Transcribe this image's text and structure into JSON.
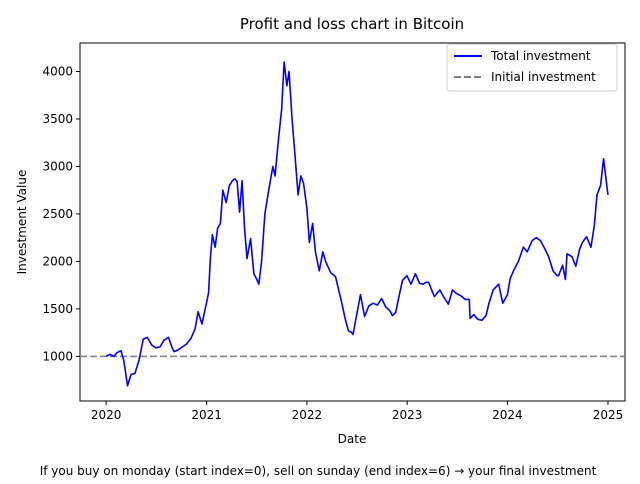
{
  "chart_data": {
    "type": "line",
    "title": "Profit and loss chart in Bitcoin",
    "xlabel": "Date",
    "ylabel": "Investment Value",
    "caption": "If you buy on monday (start index=0), sell on sunday (end index=6) → your final investment",
    "xlim": [
      "2019-09-28",
      "2025-03-04"
    ],
    "ylim": [
      530,
      4300
    ],
    "xticks": [
      {
        "label": "2020",
        "value": "2020-01-01"
      },
      {
        "label": "2021",
        "value": "2021-01-01"
      },
      {
        "label": "2022",
        "value": "2022-01-01"
      },
      {
        "label": "2023",
        "value": "2023-01-01"
      },
      {
        "label": "2024",
        "value": "2024-01-01"
      },
      {
        "label": "2025",
        "value": "2025-01-01"
      }
    ],
    "yticks": [
      1000,
      1500,
      2000,
      2500,
      3000,
      3500,
      4000
    ],
    "grid": false,
    "legend_position": "upper right",
    "series": [
      {
        "name": "Total investment",
        "color": "#0000ff",
        "style": "solid",
        "x": [
          "2020-01-01",
          "2020-01-15",
          "2020-01-29",
          "2020-02-10",
          "2020-02-24",
          "2020-03-05",
          "2020-03-12",
          "2020-03-19",
          "2020-04-01",
          "2020-04-15",
          "2020-04-30",
          "2020-05-15",
          "2020-05-30",
          "2020-06-15",
          "2020-06-30",
          "2020-07-15",
          "2020-07-30",
          "2020-08-15",
          "2020-08-30",
          "2020-09-05",
          "2020-09-20",
          "2020-10-05",
          "2020-10-20",
          "2020-11-05",
          "2020-11-20",
          "2020-12-01",
          "2020-12-15",
          "2021-01-01",
          "2021-01-08",
          "2021-01-15",
          "2021-01-22",
          "2021-02-01",
          "2021-02-10",
          "2021-02-20",
          "2021-03-01",
          "2021-03-13",
          "2021-03-25",
          "2021-04-05",
          "2021-04-14",
          "2021-04-22",
          "2021-05-01",
          "2021-05-10",
          "2021-05-19",
          "2021-05-28",
          "2021-06-10",
          "2021-06-22",
          "2021-07-01",
          "2021-07-10",
          "2021-07-20",
          "2021-08-01",
          "2021-08-15",
          "2021-08-30",
          "2021-09-07",
          "2021-09-20",
          "2021-10-01",
          "2021-10-10",
          "2021-10-20",
          "2021-10-28",
          "2021-11-08",
          "2021-11-15",
          "2021-11-30",
          "2021-12-10",
          "2021-12-20",
          "2022-01-01",
          "2022-01-10",
          "2022-01-22",
          "2022-02-01",
          "2022-02-15",
          "2022-02-28",
          "2022-03-10",
          "2022-03-29",
          "2022-04-15",
          "2022-04-30",
          "2022-05-09",
          "2022-05-20",
          "2022-06-01",
          "2022-06-13",
          "2022-06-18",
          "2022-06-30",
          "2022-07-15",
          "2022-07-30",
          "2022-08-14",
          "2022-08-30",
          "2022-09-15",
          "2022-09-30",
          "2022-10-15",
          "2022-10-30",
          "2022-11-08",
          "2022-11-20",
          "2022-11-30",
          "2022-12-15",
          "2022-12-31",
          "2023-01-15",
          "2023-01-31",
          "2023-02-15",
          "2023-02-28",
          "2023-03-10",
          "2023-03-20",
          "2023-04-10",
          "2023-04-30",
          "2023-05-15",
          "2023-05-31",
          "2023-06-15",
          "2023-06-30",
          "2023-07-15",
          "2023-07-31",
          "2023-08-15",
          "2023-08-18",
          "2023-09-01",
          "2023-09-15",
          "2023-09-30",
          "2023-10-15",
          "2023-10-25",
          "2023-11-10",
          "2023-11-30",
          "2023-12-15",
          "2024-01-01",
          "2024-01-11",
          "2024-01-23",
          "2024-02-10",
          "2024-02-28",
          "2024-03-13",
          "2024-03-31",
          "2024-04-15",
          "2024-04-30",
          "2024-05-15",
          "2024-05-30",
          "2024-06-15",
          "2024-06-30",
          "2024-07-05",
          "2024-07-20",
          "2024-07-30",
          "2024-08-05",
          "2024-08-23",
          "2024-09-06",
          "2024-09-20",
          "2024-09-30",
          "2024-10-15",
          "2024-10-31",
          "2024-11-12",
          "2024-11-22",
          "2024-12-05",
          "2024-12-16",
          "2025-01-01"
        ],
        "y": [
          1000,
          1020,
          1000,
          1040,
          1060,
          960,
          830,
          690,
          810,
          820,
          960,
          1180,
          1200,
          1120,
          1090,
          1100,
          1170,
          1200,
          1080,
          1050,
          1070,
          1100,
          1130,
          1190,
          1290,
          1470,
          1340,
          1570,
          1670,
          2050,
          2280,
          2150,
          2350,
          2400,
          2750,
          2620,
          2800,
          2850,
          2870,
          2840,
          2520,
          2850,
          2350,
          2030,
          2240,
          1870,
          1820,
          1760,
          2000,
          2500,
          2750,
          3000,
          2900,
          3300,
          3600,
          4100,
          3850,
          4000,
          3500,
          3250,
          2700,
          2900,
          2820,
          2560,
          2200,
          2400,
          2100,
          1900,
          2100,
          2000,
          1880,
          1840,
          1660,
          1550,
          1400,
          1270,
          1250,
          1230,
          1420,
          1650,
          1420,
          1530,
          1560,
          1540,
          1610,
          1520,
          1480,
          1430,
          1460,
          1600,
          1800,
          1850,
          1760,
          1870,
          1770,
          1760,
          1780,
          1780,
          1630,
          1700,
          1620,
          1550,
          1700,
          1660,
          1640,
          1600,
          1600,
          1400,
          1440,
          1390,
          1380,
          1430,
          1550,
          1700,
          1760,
          1560,
          1650,
          1820,
          1900,
          2000,
          2150,
          2100,
          2220,
          2250,
          2220,
          2140,
          2050,
          1900,
          1850,
          1850,
          1960,
          1810,
          2080,
          2050,
          1950,
          2130,
          2200,
          2260,
          2150,
          2370,
          2700,
          2800,
          3080,
          2700
        ]
      },
      {
        "name": "Initial investment",
        "color": "#808080",
        "style": "dashed",
        "y_constant": 1000
      }
    ]
  }
}
